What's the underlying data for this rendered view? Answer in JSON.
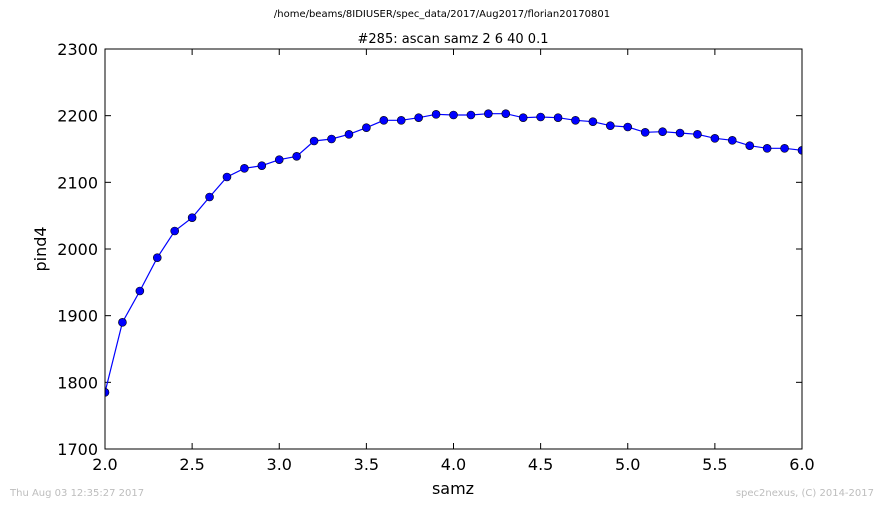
{
  "header": {
    "path": "/home/beams/8IDIUSER/spec_data/2017/Aug2017/florian20170801"
  },
  "footer": {
    "timestamp": "Thu Aug 03 12:35:27 2017",
    "credit": "spec2nexus, (C) 2014-2017"
  },
  "chart_data": {
    "type": "line",
    "title": "#285: ascan  samz 2 6  40 0.1",
    "xlabel": "samz",
    "ylabel": "pind4",
    "xlim": [
      2.0,
      6.0
    ],
    "ylim": [
      1700,
      2300
    ],
    "xticks": [
      "2.0",
      "2.5",
      "3.0",
      "3.5",
      "4.0",
      "4.5",
      "5.0",
      "5.5",
      "6.0"
    ],
    "yticks": [
      "1700",
      "1800",
      "1900",
      "2000",
      "2100",
      "2200",
      "2300"
    ],
    "grid": false,
    "line_color": "#0000ff",
    "marker_color": "#0000ff",
    "x": [
      2.0,
      2.1,
      2.2,
      2.3,
      2.4,
      2.5,
      2.6,
      2.7,
      2.8,
      2.9,
      3.0,
      3.1,
      3.2,
      3.3,
      3.4,
      3.5,
      3.6,
      3.7,
      3.8,
      3.9,
      4.0,
      4.1,
      4.2,
      4.3,
      4.4,
      4.5,
      4.6,
      4.7,
      4.8,
      4.9,
      5.0,
      5.1,
      5.2,
      5.3,
      5.4,
      5.5,
      5.6,
      5.7,
      5.8,
      5.9,
      6.0
    ],
    "y": [
      1785,
      1890,
      1937,
      1987,
      2027,
      2047,
      2078,
      2108,
      2121,
      2125,
      2134,
      2139,
      2162,
      2165,
      2172,
      2182,
      2193,
      2193,
      2197,
      2202,
      2201,
      2201,
      2203,
      2203,
      2197,
      2198,
      2197,
      2193,
      2191,
      2185,
      2183,
      2175,
      2176,
      2174,
      2172,
      2166,
      2163,
      2155,
      2151,
      2151,
      2148
    ]
  }
}
